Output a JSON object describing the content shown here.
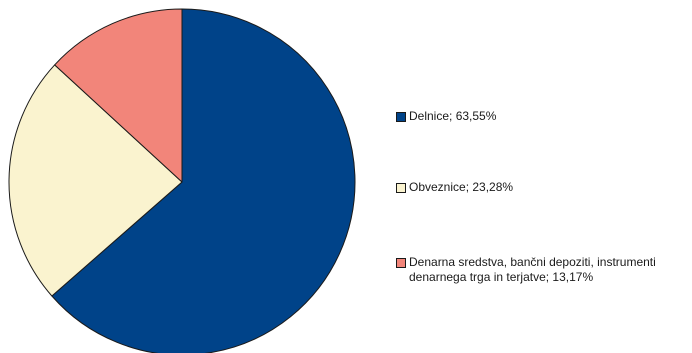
{
  "chart_data": {
    "type": "pie",
    "title": "",
    "legend_position": "right",
    "slices": [
      {
        "label": "Delnice; 63,55%",
        "value": 63.55,
        "color": "#004389"
      },
      {
        "label": "Obveznice; 23,28%",
        "value": 23.28,
        "color": "#faf3cf"
      },
      {
        "label": "Denarna sredstva, bančni depoziti, instrumenti denarnega trga in terjatve; 13,17%",
        "value": 13.17,
        "color": "#f2857a"
      }
    ]
  }
}
